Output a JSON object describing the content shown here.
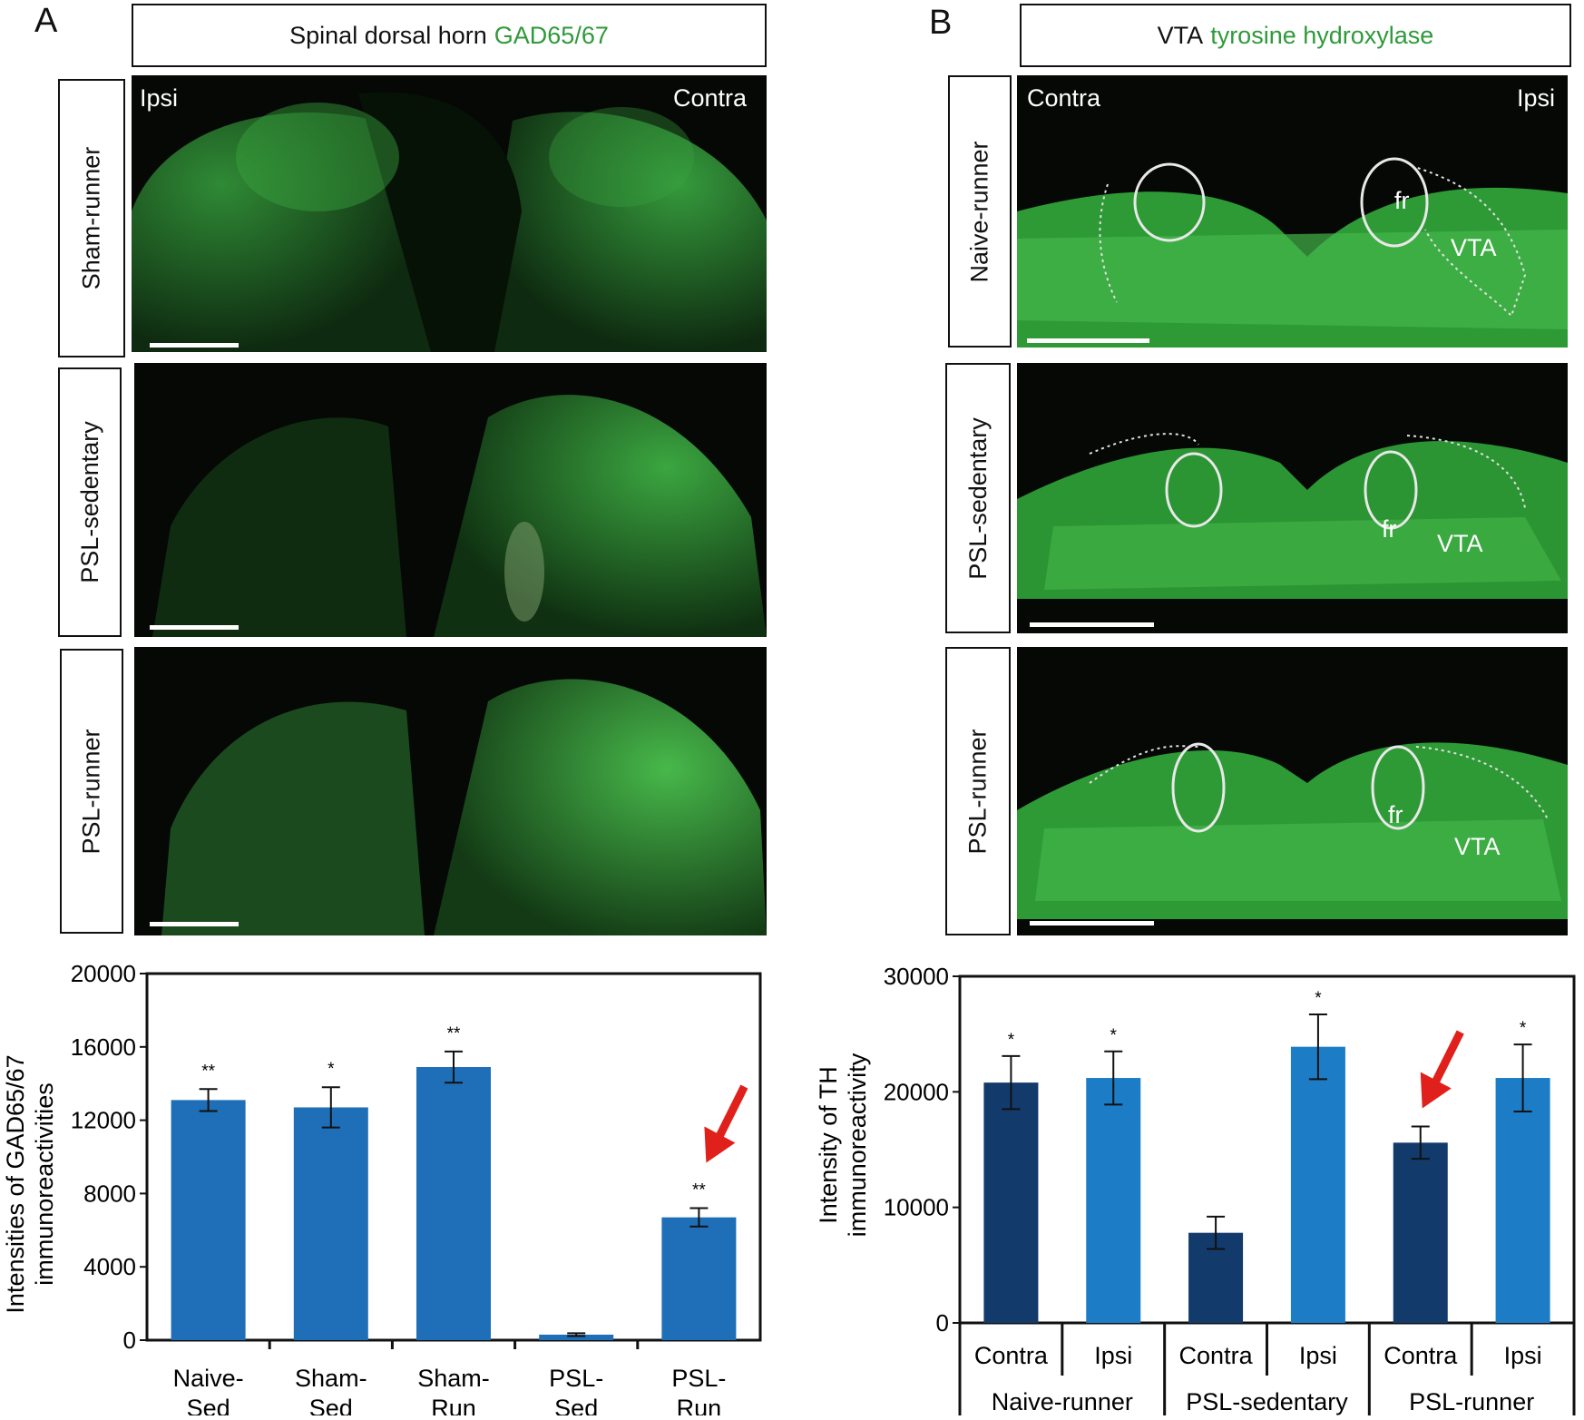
{
  "panel_a": {
    "letter": "A",
    "title_plain": "Spinal dorsal horn",
    "title_green": "GAD65/67",
    "rows": [
      {
        "label": "Sham-runner",
        "left": "Ipsi",
        "right": "Contra"
      },
      {
        "label": "PSL-sedentary"
      },
      {
        "label": "PSL-runner"
      }
    ]
  },
  "panel_b": {
    "letter": "B",
    "title_plain": "VTA",
    "title_green": "tyrosine hydroxylase",
    "rows": [
      {
        "label": "Naive-runner",
        "left": "Contra",
        "right": "Ipsi",
        "fr": "fr",
        "vta": "VTA"
      },
      {
        "label": "PSL-sedentary",
        "fr": "fr",
        "vta": "VTA"
      },
      {
        "label": "PSL-runner",
        "fr": "fr",
        "vta": "VTA"
      }
    ]
  },
  "colors": {
    "stain_green": "#2e9a3a",
    "bar_medium_blue": "#1f6fb8",
    "bar_dark_blue": "#123a6b",
    "bar_light_blue": "#1c7cc6",
    "arrow_red": "#e0201b"
  },
  "chart_data": [
    {
      "type": "bar",
      "ylabel": "Intensities of GAD65/67 immunoreactivities",
      "ylabel_lines": [
        "Intensities of GAD65/67",
        "immunoreactivities"
      ],
      "ylim": [
        0,
        20000
      ],
      "yticks": [
        "20000",
        "16000",
        "12000",
        "8000",
        "4000",
        "0"
      ],
      "categories": [
        {
          "line1": "Naive-",
          "line2": "Sed"
        },
        {
          "line1": "Sham-",
          "line2": "Sed"
        },
        {
          "line1": "Sham-",
          "line2": "Run"
        },
        {
          "line1": "PSL-",
          "line2": "Sed"
        },
        {
          "line1": "PSL-",
          "line2": "Run"
        }
      ],
      "values": [
        13100,
        12700,
        14900,
        300,
        6700
      ],
      "errors": [
        600,
        1100,
        850,
        80,
        500
      ],
      "significance": [
        "**",
        "*",
        "**",
        "",
        "**"
      ],
      "arrow_at": 4
    },
    {
      "type": "bar",
      "ylabel": "Intensity of TH immunoreactivity",
      "ylabel_lines": [
        "Intensity of TH",
        "immunoreactivity"
      ],
      "ylim": [
        0,
        30000
      ],
      "yticks": [
        "30000",
        "20000",
        "10000",
        "0"
      ],
      "side_labels": [
        "Contra",
        "Ipsi",
        "Contra",
        "Ipsi",
        "Contra",
        "Ipsi"
      ],
      "groups": [
        "Naive-runner",
        "PSL-sedentary",
        "PSL-runner"
      ],
      "values": [
        20800,
        21200,
        7800,
        23900,
        15600,
        21200
      ],
      "errors": [
        2300,
        2300,
        1400,
        2800,
        1400,
        2900
      ],
      "series_colors": [
        "dark",
        "light",
        "dark",
        "light",
        "dark",
        "light"
      ],
      "significance": [
        "*",
        "*",
        "",
        "*",
        "",
        "*"
      ],
      "arrow_at": 4
    }
  ]
}
